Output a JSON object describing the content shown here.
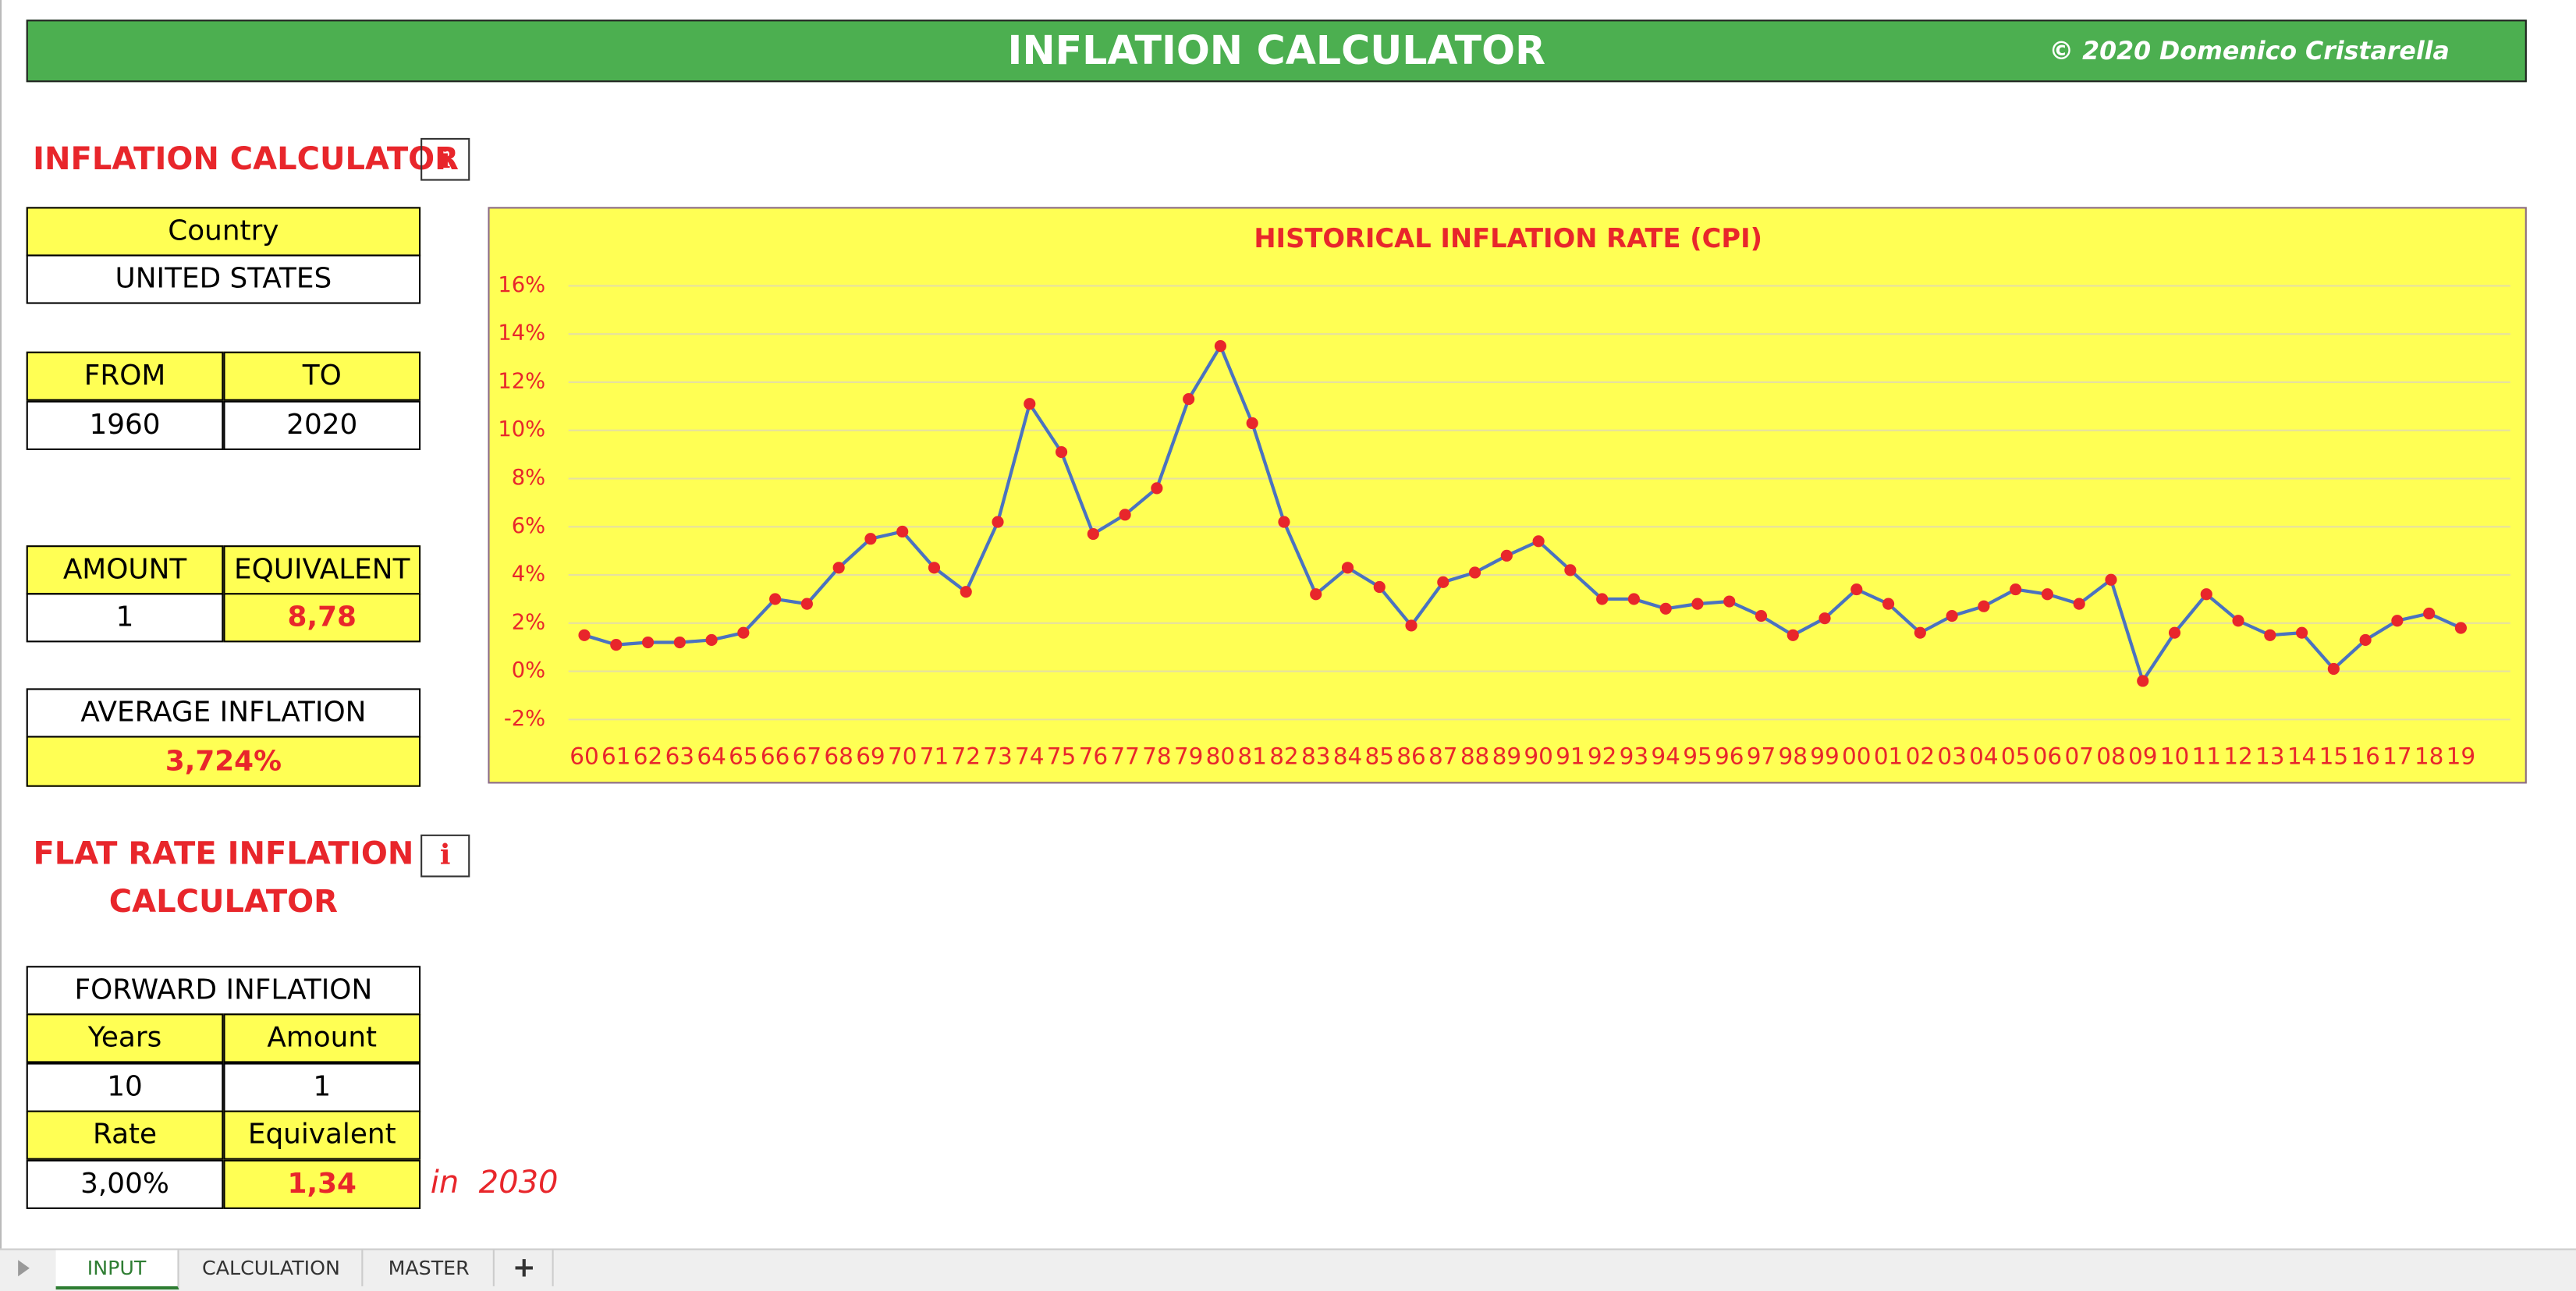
{
  "header": {
    "title": "INFLATION CALCULATOR",
    "copyright": "© 2020 Domenico Cristarella"
  },
  "calculator": {
    "title": "INFLATION CALCULATOR",
    "info": "i",
    "country_label": "Country",
    "country": "UNITED STATES",
    "from_label": "FROM",
    "to_label": "TO",
    "from": "1960",
    "to": "2020",
    "amount_label": "AMOUNT",
    "equivalent_label": "EQUIVALENT",
    "amount": "1",
    "equivalent": "8,78",
    "average_label": "AVERAGE INFLATION",
    "average": "3,724%"
  },
  "flat_rate": {
    "title_lines": [
      "FLAT RATE INFLATION",
      "CALCULATOR"
    ],
    "info": "i",
    "table_title": "FORWARD INFLATION",
    "years_label": "Years",
    "amount_label": "Amount",
    "years": "10",
    "amount": "1",
    "rate_label": "Rate",
    "equivalent_label": "Equivalent",
    "rate": "3,00%",
    "equivalent": "1,34",
    "in_year": "in  2030"
  },
  "chart_data": {
    "type": "line",
    "title": "HISTORICAL INFLATION RATE (CPI)",
    "categories": [
      "60",
      "61",
      "62",
      "63",
      "64",
      "65",
      "66",
      "67",
      "68",
      "69",
      "70",
      "71",
      "72",
      "73",
      "74",
      "75",
      "76",
      "77",
      "78",
      "79",
      "80",
      "81",
      "82",
      "83",
      "84",
      "85",
      "86",
      "87",
      "88",
      "89",
      "90",
      "91",
      "92",
      "93",
      "94",
      "95",
      "96",
      "97",
      "98",
      "99",
      "00",
      "01",
      "02",
      "03",
      "04",
      "05",
      "06",
      "07",
      "08",
      "09",
      "10",
      "11",
      "12",
      "13",
      "14",
      "15",
      "16",
      "17",
      "18",
      "19"
    ],
    "values": [
      1.5,
      1.1,
      1.2,
      1.2,
      1.3,
      1.6,
      3.0,
      2.8,
      4.3,
      5.5,
      5.8,
      4.3,
      3.3,
      6.2,
      11.1,
      9.1,
      5.7,
      6.5,
      7.6,
      11.3,
      13.5,
      10.3,
      6.2,
      3.2,
      4.3,
      3.5,
      1.9,
      3.7,
      4.1,
      4.8,
      5.4,
      4.2,
      3.0,
      3.0,
      2.6,
      2.8,
      2.9,
      2.3,
      1.5,
      2.2,
      3.4,
      2.8,
      1.6,
      2.3,
      2.7,
      3.4,
      3.2,
      2.8,
      3.8,
      -0.4,
      1.6,
      3.2,
      2.1,
      1.5,
      1.6,
      0.1,
      1.3,
      2.1,
      2.4,
      1.8
    ],
    "color": "#4a72c0",
    "marker_color": "#e8262b",
    "ylim": [
      -2,
      16
    ],
    "yticks": [
      {
        "value": -2,
        "label": "-2%"
      },
      {
        "value": 0,
        "label": "0%"
      },
      {
        "value": 2,
        "label": "2%"
      },
      {
        "value": 4,
        "label": "4%"
      },
      {
        "value": 6,
        "label": "6%"
      },
      {
        "value": 8,
        "label": "8%"
      },
      {
        "value": 10,
        "label": "10%"
      },
      {
        "value": 12,
        "label": "12%"
      },
      {
        "value": 14,
        "label": "14%"
      },
      {
        "value": 16,
        "label": "16%"
      }
    ],
    "grid": true
  },
  "tabs": [
    "INPUT",
    "CALCULATION",
    "MASTER",
    "+"
  ]
}
